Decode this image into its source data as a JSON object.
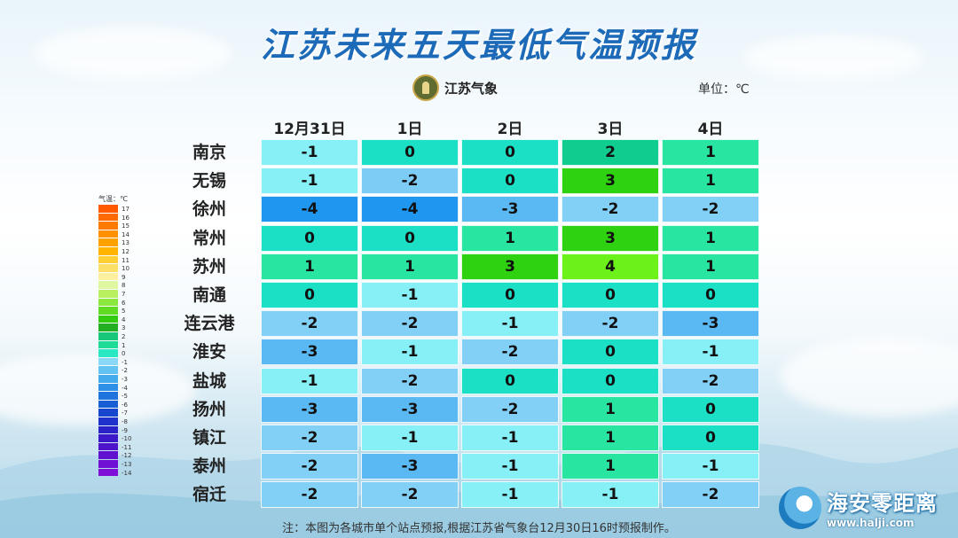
{
  "title": "江苏未来五天最低气温预报",
  "logo_text": "江苏气象",
  "unit_label": "单位：℃",
  "note": "注：本图为各城市单个站点预报,根据江苏省气象台12月30日16时预报制作。",
  "watermark": {
    "name": "海安零距离",
    "url": "www.halji.com"
  },
  "legend_title": "气温：℃",
  "legend": [
    {
      "label": "17",
      "color": "#ff5a00"
    },
    {
      "label": "16",
      "color": "#ff6a00"
    },
    {
      "label": "15",
      "color": "#ff7a00"
    },
    {
      "label": "14",
      "color": "#ff9000"
    },
    {
      "label": "13",
      "color": "#ffa200"
    },
    {
      "label": "12",
      "color": "#ffb400"
    },
    {
      "label": "11",
      "color": "#ffcf33"
    },
    {
      "label": "10",
      "color": "#ffe066"
    },
    {
      "label": "9",
      "color": "#fff0a0"
    },
    {
      "label": "8",
      "color": "#dff7a0"
    },
    {
      "label": "7",
      "color": "#b8f060"
    },
    {
      "label": "6",
      "color": "#8ce83c"
    },
    {
      "label": "5",
      "color": "#5fdc22"
    },
    {
      "label": "4",
      "color": "#33cc11"
    },
    {
      "label": "3",
      "color": "#22b022"
    },
    {
      "label": "2",
      "color": "#19c77a"
    },
    {
      "label": "1",
      "color": "#1ddc98"
    },
    {
      "label": "0",
      "color": "#2be8c4"
    },
    {
      "label": "-1",
      "color": "#8ad8f8"
    },
    {
      "label": "-2",
      "color": "#62c2f2"
    },
    {
      "label": "-3",
      "color": "#45acec"
    },
    {
      "label": "-4",
      "color": "#2d8fe6"
    },
    {
      "label": "-5",
      "color": "#1e74dc"
    },
    {
      "label": "-6",
      "color": "#1a5ed6"
    },
    {
      "label": "-7",
      "color": "#1747cf"
    },
    {
      "label": "-8",
      "color": "#1f33cc"
    },
    {
      "label": "-9",
      "color": "#2b22c8"
    },
    {
      "label": "-10",
      "color": "#3b18c8"
    },
    {
      "label": "-11",
      "color": "#4e14cc"
    },
    {
      "label": "-12",
      "color": "#6012d0"
    },
    {
      "label": "-13",
      "color": "#7010d4"
    },
    {
      "label": "-14",
      "color": "#7e0ed8"
    }
  ],
  "chart_data": {
    "type": "table",
    "title": "江苏未来五天最低气温预报",
    "columns": [
      "12月31日",
      "1日",
      "2日",
      "3日",
      "4日"
    ],
    "rows": [
      "南京",
      "无锡",
      "徐州",
      "常州",
      "苏州",
      "南通",
      "连云港",
      "淮安",
      "盐城",
      "扬州",
      "镇江",
      "泰州",
      "宿迁"
    ],
    "values": [
      [
        -1,
        0,
        0,
        2,
        1
      ],
      [
        -1,
        -2,
        0,
        3,
        1
      ],
      [
        -4,
        -4,
        -3,
        -2,
        -2
      ],
      [
        0,
        0,
        1,
        3,
        1
      ],
      [
        1,
        1,
        3,
        4,
        1
      ],
      [
        0,
        -1,
        0,
        0,
        0
      ],
      [
        -2,
        -2,
        -1,
        -2,
        -3
      ],
      [
        -3,
        -1,
        -2,
        0,
        -1
      ],
      [
        -1,
        -2,
        0,
        0,
        -2
      ],
      [
        -3,
        -3,
        -2,
        1,
        0
      ],
      [
        -2,
        -1,
        -1,
        1,
        0
      ],
      [
        -2,
        -3,
        -1,
        1,
        -1
      ],
      [
        -2,
        -2,
        -1,
        -1,
        -2
      ]
    ],
    "cell_colors": [
      [
        "#86f0f6",
        "#1be0c6",
        "#1be0c6",
        "#10cc8e",
        "#28e6a2"
      ],
      [
        "#86f0f6",
        "#7cccf6",
        "#1be0c6",
        "#2ed210",
        "#28e6a2"
      ],
      [
        "#1f96f0",
        "#1f96f0",
        "#5ab9f3",
        "#82d0f6",
        "#82d0f6"
      ],
      [
        "#1be0c6",
        "#1be0c6",
        "#28e6a2",
        "#2ed210",
        "#28e6a2"
      ],
      [
        "#28e6a2",
        "#28e6a2",
        "#2ed210",
        "#6cf21a",
        "#28e6a2"
      ],
      [
        "#1be0c6",
        "#86f0f6",
        "#1be0c6",
        "#1be0c6",
        "#1be0c6"
      ],
      [
        "#82d0f6",
        "#82d0f6",
        "#86f0f6",
        "#82d0f6",
        "#5ab9f3"
      ],
      [
        "#5ab9f3",
        "#86f0f6",
        "#82d0f6",
        "#1be0c6",
        "#86f0f6"
      ],
      [
        "#86f0f6",
        "#82d0f6",
        "#1be0c6",
        "#1be0c6",
        "#82d0f6"
      ],
      [
        "#5ab9f3",
        "#5ab9f3",
        "#82d0f6",
        "#28e6a2",
        "#1be0c6"
      ],
      [
        "#82d0f6",
        "#86f0f6",
        "#86f0f6",
        "#28e6a2",
        "#1be0c6"
      ],
      [
        "#82d0f6",
        "#5ab9f3",
        "#86f0f6",
        "#28e6a2",
        "#86f0f6"
      ],
      [
        "#82d0f6",
        "#82d0f6",
        "#86f0f6",
        "#86f0f6",
        "#82d0f6"
      ]
    ]
  }
}
